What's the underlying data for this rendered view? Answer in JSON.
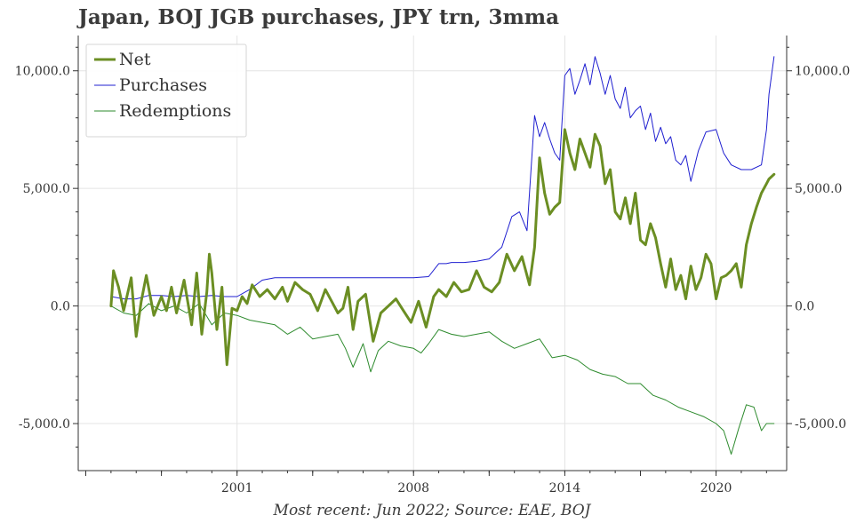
{
  "chart_data": {
    "type": "line",
    "title": "Japan, BOJ JGB purchases, JPY trn, 3mma",
    "source": "Most recent: Jun 2022; Source: EAE, BOJ",
    "xlabel": "",
    "ylabel": "",
    "xlim": [
      1994.7,
      2022.8
    ],
    "ylim": [
      -7000,
      11500
    ],
    "x_ticks": [
      1995.0,
      1998.0,
      2001.0,
      2004.0,
      2008.0,
      2011.0,
      2014.0,
      2017.0,
      2020.0
    ],
    "x_tick_labels": [
      "",
      "",
      "2001",
      "",
      "2008",
      "",
      "2014",
      "",
      "2020"
    ],
    "y_ticks": [
      -5000,
      0,
      5000,
      10000
    ],
    "y_tick_labels": [
      "-5,000.0",
      "0.0",
      "5,000.0",
      "10,000.0"
    ],
    "legend_position": "top-left",
    "colors": {
      "net": "#6b8e23",
      "purchases": "#1f1fd0",
      "redemptions": "#2e8b2e"
    },
    "series": [
      {
        "name": "Net",
        "x": [
          1996.0,
          1996.1,
          1996.3,
          1996.5,
          1996.8,
          1997.0,
          1997.2,
          1997.4,
          1997.7,
          1998.0,
          1998.2,
          1998.4,
          1998.6,
          1998.9,
          1999.2,
          1999.4,
          1999.6,
          1999.8,
          1999.9,
          2000.0,
          2000.2,
          2000.4,
          2000.6,
          2000.8,
          2001.0,
          2001.2,
          2001.4,
          2001.6,
          2001.9,
          2002.2,
          2002.5,
          2002.8,
          2003.0,
          2003.3,
          2003.6,
          2003.9,
          2004.2,
          2004.5,
          2004.8,
          2005.0,
          2005.2,
          2005.4,
          2005.6,
          2005.8,
          2006.1,
          2006.4,
          2006.7,
          2007.0,
          2007.3,
          2007.6,
          2007.9,
          2008.2,
          2008.5,
          2008.8,
          2009.0,
          2009.3,
          2009.6,
          2009.9,
          2010.2,
          2010.5,
          2010.8,
          2011.1,
          2011.4,
          2011.7,
          2012.0,
          2012.3,
          2012.6,
          2012.8,
          2013.0,
          2013.2,
          2013.4,
          2013.6,
          2013.8,
          2014.0,
          2014.2,
          2014.4,
          2014.6,
          2014.8,
          2015.0,
          2015.2,
          2015.4,
          2015.6,
          2015.8,
          2016.0,
          2016.2,
          2016.4,
          2016.6,
          2016.8,
          2017.0,
          2017.2,
          2017.4,
          2017.6,
          2017.8,
          2018.0,
          2018.2,
          2018.4,
          2018.6,
          2018.8,
          2019.0,
          2019.2,
          2019.4,
          2019.6,
          2019.8,
          2020.0,
          2020.2,
          2020.4,
          2020.6,
          2020.8,
          2021.0,
          2021.2,
          2021.4,
          2021.6,
          2021.8,
          2022.0,
          2022.1,
          2022.3
        ],
        "values": [
          0,
          1500,
          800,
          -200,
          1200,
          -1300,
          200,
          1300,
          -400,
          400,
          -200,
          800,
          -300,
          1100,
          -800,
          1400,
          -1200,
          600,
          2200,
          1400,
          -1000,
          800,
          -2500,
          -100,
          -200,
          400,
          100,
          900,
          400,
          700,
          300,
          800,
          200,
          1000,
          700,
          500,
          -200,
          700,
          100,
          -300,
          -100,
          800,
          -1000,
          200,
          500,
          -1500,
          -300,
          0,
          300,
          -200,
          -700,
          200,
          -900,
          400,
          700,
          400,
          1000,
          600,
          700,
          1500,
          800,
          600,
          1000,
          2200,
          1500,
          2100,
          900,
          2500,
          6300,
          4800,
          3900,
          4200,
          4400,
          7500,
          6500,
          5800,
          7100,
          6500,
          5900,
          7300,
          6800,
          5200,
          5800,
          4000,
          3700,
          4600,
          3500,
          4800,
          2800,
          2600,
          3500,
          2900,
          1800,
          800,
          2000,
          700,
          1300,
          300,
          1700,
          700,
          1200,
          2200,
          1800,
          300,
          1200,
          1300,
          1500,
          1800,
          800,
          2600,
          3500,
          4200,
          4800,
          5200,
          5400,
          5600
        ]
      },
      {
        "name": "Purchases",
        "x": [
          1996.0,
          1996.5,
          1997.0,
          1997.5,
          1998.0,
          1998.5,
          1999.0,
          1999.5,
          2000.0,
          2000.5,
          2001.0,
          2001.5,
          2002.0,
          2002.5,
          2003.0,
          2004.0,
          2005.0,
          2006.0,
          2007.0,
          2008.0,
          2008.6,
          2009.0,
          2009.3,
          2009.5,
          2010.0,
          2010.5,
          2011.0,
          2011.5,
          2011.9,
          2012.2,
          2012.5,
          2012.8,
          2013.0,
          2013.2,
          2013.4,
          2013.6,
          2013.8,
          2014.0,
          2014.2,
          2014.4,
          2014.6,
          2014.8,
          2015.0,
          2015.2,
          2015.4,
          2015.6,
          2015.8,
          2016.0,
          2016.2,
          2016.4,
          2016.6,
          2016.8,
          2017.0,
          2017.2,
          2017.4,
          2017.6,
          2017.8,
          2018.0,
          2018.2,
          2018.4,
          2018.6,
          2018.8,
          2019.0,
          2019.3,
          2019.6,
          2020.0,
          2020.3,
          2020.6,
          2021.0,
          2021.4,
          2021.8,
          2022.0,
          2022.1,
          2022.3
        ],
        "values": [
          400,
          300,
          300,
          450,
          450,
          400,
          450,
          400,
          450,
          400,
          400,
          700,
          1100,
          1200,
          1200,
          1200,
          1200,
          1200,
          1200,
          1200,
          1250,
          1800,
          1800,
          1850,
          1850,
          1900,
          2000,
          2500,
          3800,
          4000,
          3200,
          8100,
          7200,
          7800,
          7100,
          6500,
          6200,
          9800,
          10100,
          9000,
          9600,
          10300,
          9400,
          10600,
          9900,
          9000,
          9800,
          8800,
          8400,
          9300,
          8000,
          8300,
          8500,
          7500,
          8200,
          7000,
          7600,
          6900,
          7200,
          6200,
          6000,
          6400,
          5300,
          6600,
          7400,
          7500,
          6500,
          6000,
          5800,
          5800,
          6000,
          7500,
          9000,
          10600
        ]
      },
      {
        "name": "Redemptions",
        "x": [
          1996.0,
          1996.5,
          1997.0,
          1997.5,
          1998.0,
          1998.5,
          1999.0,
          1999.5,
          2000.0,
          2000.5,
          2001.0,
          2001.5,
          2002.0,
          2002.5,
          2003.0,
          2003.5,
          2004.0,
          2004.5,
          2005.0,
          2005.3,
          2005.6,
          2006.0,
          2006.3,
          2006.6,
          2007.0,
          2007.5,
          2008.0,
          2008.3,
          2008.6,
          2009.0,
          2009.5,
          2010.0,
          2010.5,
          2011.0,
          2011.5,
          2012.0,
          2012.5,
          2013.0,
          2013.5,
          2014.0,
          2014.5,
          2015.0,
          2015.5,
          2016.0,
          2016.5,
          2017.0,
          2017.5,
          2018.0,
          2018.5,
          2019.0,
          2019.5,
          2020.0,
          2020.3,
          2020.6,
          2020.9,
          2021.2,
          2021.5,
          2021.8,
          2022.0,
          2022.3
        ],
        "values": [
          0,
          -300,
          -400,
          100,
          -200,
          0,
          -300,
          100,
          -800,
          -300,
          -400,
          -600,
          -700,
          -800,
          -1200,
          -900,
          -1400,
          -1300,
          -1200,
          -1800,
          -2600,
          -1600,
          -2800,
          -1900,
          -1500,
          -1700,
          -1800,
          -2000,
          -1600,
          -1000,
          -1200,
          -1300,
          -1200,
          -1100,
          -1500,
          -1800,
          -1600,
          -1400,
          -2200,
          -2100,
          -2300,
          -2700,
          -2900,
          -3000,
          -3300,
          -3300,
          -3800,
          -4000,
          -4300,
          -4500,
          -4700,
          -5000,
          -5300,
          -6300,
          -5200,
          -4200,
          -4300,
          -5300,
          -5000,
          -5000
        ]
      }
    ]
  }
}
